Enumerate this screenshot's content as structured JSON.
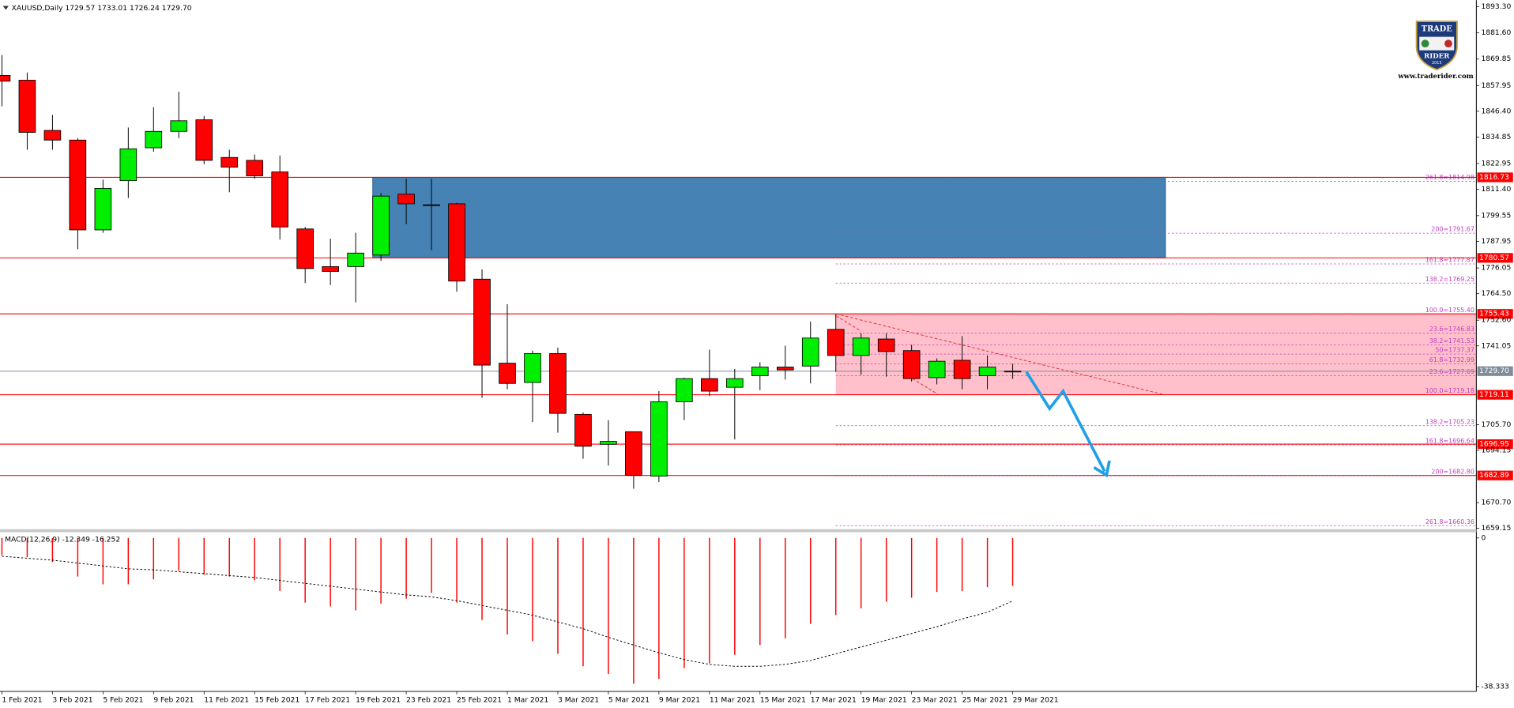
{
  "chart_data": {
    "type": "candlestick",
    "title": "XAUUSD,Daily  1729.57 1733.01 1726.24 1729.70",
    "categories": [
      "1 Feb 2021",
      null,
      "3 Feb 2021",
      null,
      "5 Feb 2021",
      null,
      "9 Feb 2021",
      null,
      "11 Feb 2021",
      null,
      "15 Feb 2021",
      null,
      "17 Feb 2021",
      null,
      "19 Feb 2021",
      null,
      "23 Feb 2021",
      null,
      "25 Feb 2021",
      null,
      "1 Mar 2021",
      null,
      "3 Mar 2021",
      null,
      "5 Mar 2021",
      null,
      "9 Mar 2021",
      null,
      "11 Mar 2021",
      null,
      "15 Mar 2021",
      null,
      "17 Mar 2021",
      null,
      "19 Mar 2021",
      null,
      "23 Mar 2021",
      null,
      "25 Mar 2021",
      null,
      "29 Mar 2021"
    ],
    "open": [
      1862.51,
      1860.35,
      1837.8,
      1833.46,
      1793.14,
      1815.25,
      1830.0,
      1837.37,
      1842.57,
      1825.66,
      1824.36,
      1819.16,
      1793.57,
      1776.66,
      1776.66,
      1781.86,
      1809.18,
      1804.41,
      1804.85,
      1771.02,
      1733.3,
      1724.63,
      1737.64,
      1710.32,
      1696.88,
      1702.52,
      1682.57,
      1715.96,
      1726.37,
      1722.46,
      1727.66,
      1731.57,
      1732.0,
      1748.48,
      1736.77,
      1744.14,
      1738.94,
      1726.8,
      1734.6,
      1727.66,
      1729.57
    ],
    "high": [
      1871.62,
      1863.82,
      1844.74,
      1834.33,
      1815.69,
      1839.1,
      1848.21,
      1855.14,
      1844.3,
      1829.13,
      1826.96,
      1826.53,
      1794.44,
      1789.24,
      1791.84,
      1809.62,
      1816.12,
      1816.12,
      1805.28,
      1775.36,
      1759.75,
      1738.94,
      1740.24,
      1711.19,
      1707.72,
      1702.52,
      1720.73,
      1726.8,
      1739.37,
      1730.7,
      1733.74,
      1741.11,
      1751.95,
      1755.42,
      1746.74,
      1746.74,
      1741.54,
      1735.47,
      1745.45,
      1736.77,
      1733.01
    ],
    "low": [
      1848.64,
      1829.13,
      1829.13,
      1784.47,
      1791.84,
      1807.45,
      1828.26,
      1834.33,
      1822.62,
      1810.05,
      1816.12,
      1788.8,
      1769.29,
      1768.42,
      1760.62,
      1779.26,
      1795.74,
      1784.03,
      1765.39,
      1717.69,
      1721.59,
      1706.85,
      1702.08,
      1690.37,
      1687.34,
      1676.93,
      1679.97,
      1707.72,
      1718.56,
      1699.05,
      1721.16,
      1725.93,
      1724.2,
      1729.4,
      1728.1,
      1727.23,
      1725.07,
      1723.77,
      1721.59,
      1721.59,
      1726.24
    ],
    "close": [
      1859.91,
      1836.93,
      1833.46,
      1793.14,
      1811.78,
      1829.56,
      1837.37,
      1842.14,
      1824.36,
      1821.32,
      1817.42,
      1794.44,
      1775.79,
      1774.5,
      1782.73,
      1808.31,
      1804.85,
      1804.41,
      1770.16,
      1732.43,
      1724.2,
      1737.64,
      1710.76,
      1696.01,
      1698.18,
      1683.0,
      1715.96,
      1726.37,
      1720.73,
      1726.37,
      1731.57,
      1730.27,
      1744.58,
      1736.77,
      1744.58,
      1738.51,
      1726.37,
      1734.17,
      1726.37,
      1731.57,
      1729.7
    ],
    "up_color": "#00ee00",
    "down_color": "#ff0000",
    "ylim": [
      1658.3,
      1896.3
    ],
    "yticks": [
      {
        "value": 1893.3,
        "label": "1893.30"
      },
      {
        "value": 1881.6,
        "label": "1881.60"
      },
      {
        "value": 1869.85,
        "label": "1869.85"
      },
      {
        "value": 1857.95,
        "label": "1857.95"
      },
      {
        "value": 1846.4,
        "label": "1846.40"
      },
      {
        "value": 1834.85,
        "label": "1834.85"
      },
      {
        "value": 1822.95,
        "label": "1822.95"
      },
      {
        "value": 1811.4,
        "label": "1811.40"
      },
      {
        "value": 1799.55,
        "label": "1799.55"
      },
      {
        "value": 1787.95,
        "label": "1787.95"
      },
      {
        "value": 1776.05,
        "label": "1776.05"
      },
      {
        "value": 1764.5,
        "label": "1764.50"
      },
      {
        "value": 1752.6,
        "label": "1752.60"
      },
      {
        "value": 1741.05,
        "label": "1741.05"
      },
      {
        "value": 1705.7,
        "label": "1705.70"
      },
      {
        "value": 1694.15,
        "label": "1694.15"
      },
      {
        "value": 1670.7,
        "label": "1670.70"
      },
      {
        "value": 1659.15,
        "label": "1659.15"
      }
    ],
    "levels": [
      1816.73,
      1780.57,
      1755.43,
      1719.11,
      1696.95,
      1682.89
    ],
    "level_color": "#ff0000",
    "current_price": {
      "value": 1729.7,
      "label": "1729.70"
    },
    "current_color": "#7f8c99",
    "zones": [
      {
        "range": [
          1816.73,
          1780.57
        ],
        "color": "#4682b4"
      },
      {
        "range": [
          1755.43,
          1719.11
        ],
        "color": "#ffc0cb"
      }
    ],
    "fib_color": "#c040c0",
    "fib_levels": [
      {
        "value": 1814.98,
        "label": "261.8=1814.98"
      },
      {
        "value": 1791.67,
        "label": "200=1791.67"
      },
      {
        "value": 1777.87,
        "label": "161.8=1777.87"
      },
      {
        "value": 1769.25,
        "label": "138.2=1769.25"
      },
      {
        "value": 1755.4,
        "label": "100.0=1755.40"
      },
      {
        "value": 1746.83,
        "label": "23.6=1746.83"
      },
      {
        "value": 1741.53,
        "label": "38.2=1741.53"
      },
      {
        "value": 1737.37,
        "label": "50=1737.37"
      },
      {
        "value": 1732.99,
        "label": "61.8=1732.99"
      },
      {
        "value": 1727.69,
        "label": "23.6=1727.69"
      },
      {
        "value": 1719.18,
        "label": "100.0=1719.18"
      },
      {
        "value": 1705.23,
        "label": "138.2=1705.23"
      },
      {
        "value": 1696.64,
        "label": "161.8=1696.64"
      },
      {
        "value": 1682.8,
        "label": "200=1682.80"
      },
      {
        "value": 1660.36,
        "label": "261.8=1660.36"
      }
    ],
    "macd": {
      "title": "MACD(12,26,9) -12.349 -16.252",
      "ylim": [
        -39.6,
        1.5
      ],
      "yticks": [
        0,
        -38.333
      ],
      "histogram_color": "#ff0000",
      "histogram": [
        -4.5,
        -4.98,
        -6.22,
        -9.96,
        -11.95,
        -11.95,
        -10.7,
        -8.46,
        -9.46,
        -9.96,
        -10.95,
        -13.69,
        -16.68,
        -17.67,
        -18.67,
        -16.93,
        -15.68,
        -14.19,
        -16.68,
        -21.16,
        -24.89,
        -26.64,
        -29.87,
        -33.11,
        -35.1,
        -37.59,
        -36.35,
        -33.61,
        -32.36,
        -30.12,
        -27.63,
        -25.89,
        -22.16,
        -19.92,
        -18.17,
        -16.43,
        -15.43,
        -13.94,
        -13.69,
        -12.7,
        -12.349
      ],
      "signal": [
        -4.73,
        -5.23,
        -5.73,
        -6.47,
        -7.22,
        -7.97,
        -8.22,
        -8.71,
        -9.21,
        -9.71,
        -10.21,
        -10.95,
        -11.7,
        -12.45,
        -13.19,
        -13.94,
        -14.69,
        -15.19,
        -16.18,
        -17.43,
        -18.67,
        -19.92,
        -21.66,
        -23.4,
        -25.64,
        -27.63,
        -29.62,
        -31.37,
        -32.61,
        -33.11,
        -33.11,
        -32.61,
        -31.62,
        -29.87,
        -28.13,
        -26.39,
        -24.65,
        -22.9,
        -20.91,
        -19.17,
        -16.252
      ]
    }
  },
  "branding": {
    "logo_top": "TRADE",
    "logo_bottom": "RIDER",
    "year": "2013",
    "url": "www.traderider.com"
  }
}
